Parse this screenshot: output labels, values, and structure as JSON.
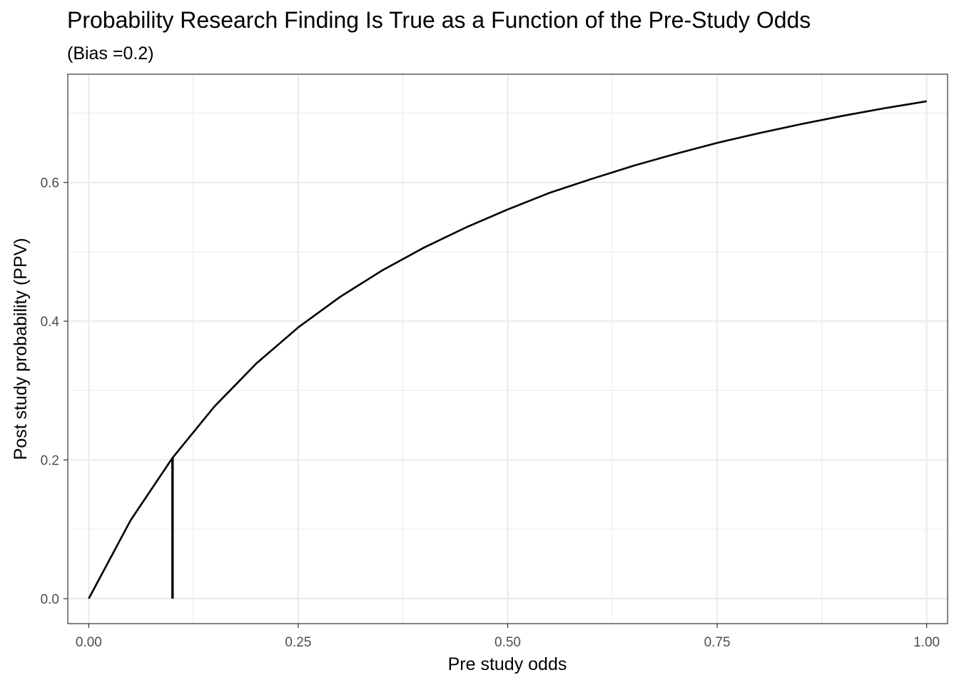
{
  "chart_data": {
    "type": "line",
    "title": "Probability Research Finding Is True as a Function of the Pre-Study Odds",
    "subtitle": "(Bias =0.2)",
    "xlabel": "Pre study odds",
    "ylabel": "Post study probability (PPV)",
    "xlim": [
      -0.025,
      1.025
    ],
    "ylim": [
      -0.036,
      0.756
    ],
    "x_ticks": [
      0.0,
      0.25,
      0.5,
      0.75,
      1.0
    ],
    "x_tick_labels": [
      "0.00",
      "0.25",
      "0.50",
      "0.75",
      "1.00"
    ],
    "x_minor_ticks": [
      0.125,
      0.375,
      0.625,
      0.875
    ],
    "y_ticks": [
      0.0,
      0.2,
      0.4,
      0.6
    ],
    "y_tick_labels": [
      "0.0",
      "0.2",
      "0.4",
      "0.6"
    ],
    "y_minor_ticks": [
      0.1,
      0.3,
      0.5,
      0.7
    ],
    "grid": true,
    "series": [
      {
        "x": [
          0.0,
          0.05,
          0.1,
          0.15,
          0.2,
          0.25,
          0.3,
          0.35,
          0.4,
          0.45,
          0.5,
          0.55,
          0.6,
          0.65,
          0.7,
          0.75,
          0.8,
          0.85,
          0.9,
          0.95,
          1.0
        ],
        "values": [
          0.0,
          0.113,
          0.203,
          0.277,
          0.339,
          0.391,
          0.435,
          0.473,
          0.506,
          0.535,
          0.561,
          0.585,
          0.605,
          0.624,
          0.641,
          0.657,
          0.671,
          0.684,
          0.696,
          0.707,
          0.717
        ]
      }
    ],
    "reference_segment": {
      "x": 0.1,
      "y_from": 0.0,
      "y_to": 0.203
    },
    "colors": {
      "line": "#000000",
      "grid_major": "#ebebeb",
      "grid_minor": "#ebebeb",
      "panel_border": "#333333",
      "tick_label": "#4d4d4d"
    }
  }
}
